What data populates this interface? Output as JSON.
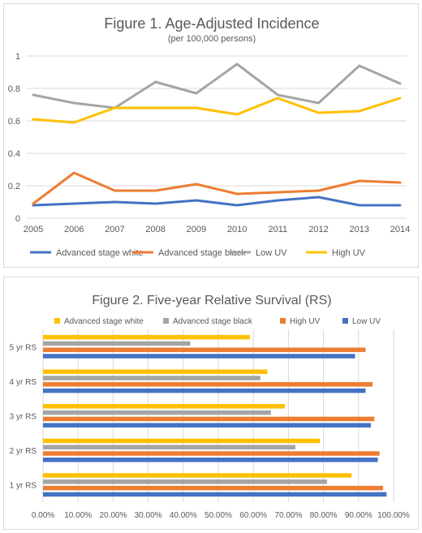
{
  "chart_data": [
    {
      "type": "line",
      "title": "Figure 1. Age-Adjusted Incidence",
      "subtitle": "(per 100,000 persons)",
      "categories": [
        "2005",
        "2006",
        "2007",
        "2008",
        "2009",
        "2010",
        "2011",
        "2012",
        "2013",
        "2014"
      ],
      "ylim": [
        0,
        1
      ],
      "yticks": [
        "0",
        "0.2",
        "0.4",
        "0.6",
        "0.8",
        "1"
      ],
      "grid": true,
      "legend_position": "bottom",
      "series": [
        {
          "name": "Advanced stage white",
          "color": "#4472C4",
          "values": [
            0.08,
            0.09,
            0.1,
            0.09,
            0.11,
            0.08,
            0.11,
            0.13,
            0.08,
            0.08
          ]
        },
        {
          "name": "Advanced stage black",
          "color": "#ED7D31",
          "values": [
            0.09,
            0.28,
            0.17,
            0.17,
            0.21,
            0.15,
            0.16,
            0.17,
            0.23,
            0.22
          ]
        },
        {
          "name": "Low UV",
          "color": "#A5A5A5",
          "values": [
            0.76,
            0.71,
            0.68,
            0.84,
            0.77,
            0.95,
            0.76,
            0.71,
            0.94,
            0.83
          ]
        },
        {
          "name": "High UV",
          "color": "#FFC000",
          "values": [
            0.61,
            0.59,
            0.68,
            0.68,
            0.68,
            0.64,
            0.74,
            0.65,
            0.66,
            0.74
          ]
        }
      ]
    },
    {
      "type": "bar",
      "orientation": "horizontal",
      "title": "Figure 2. Five-year Relative Survival (RS)",
      "categories": [
        "1 yr RS",
        "2 yr RS",
        "3 yr RS",
        "4 yr RS",
        "5 yr RS"
      ],
      "xlim": [
        0,
        1
      ],
      "xticks": [
        "0.00%",
        "10.00%",
        "20.00%",
        "30.00%",
        "40.00%",
        "50.00%",
        "60.00%",
        "70.00%",
        "80.00%",
        "90.00%",
        "100.00%"
      ],
      "grid": true,
      "legend_position": "top",
      "series": [
        {
          "name": "Advanced stage white",
          "color": "#FFC000",
          "values": [
            0.88,
            0.79,
            0.69,
            0.64,
            0.59
          ]
        },
        {
          "name": "Advanced stage black",
          "color": "#A5A5A5",
          "values": [
            0.81,
            0.72,
            0.65,
            0.62,
            0.42
          ]
        },
        {
          "name": "High UV",
          "color": "#ED7D31",
          "values": [
            0.97,
            0.96,
            0.945,
            0.94,
            0.92
          ]
        },
        {
          "name": "Low UV",
          "color": "#4472C4",
          "values": [
            0.98,
            0.955,
            0.935,
            0.92,
            0.89
          ]
        }
      ]
    }
  ]
}
